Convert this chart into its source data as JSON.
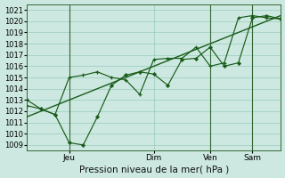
{
  "xlabel": "Pression niveau de la mer( hPa )",
  "ylim": [
    1008.5,
    1021.5
  ],
  "xlim": [
    0,
    108
  ],
  "yticks": [
    1009,
    1010,
    1011,
    1012,
    1013,
    1014,
    1015,
    1016,
    1017,
    1018,
    1019,
    1020,
    1021
  ],
  "xtick_positions": [
    18,
    54,
    78,
    96
  ],
  "xtick_labels": [
    "Jeu",
    "Dim",
    "Ven",
    "Sam"
  ],
  "vline_positions": [
    18,
    78,
    96
  ],
  "bg_color": "#cce8e0",
  "grid_color": "#99ccbb",
  "line_color": "#1a5c1a",
  "series1_x": [
    0,
    6,
    12,
    18,
    24,
    30,
    36,
    42,
    48,
    54,
    60,
    66,
    72,
    78,
    84,
    90,
    96,
    102,
    108
  ],
  "series1_y": [
    1013.0,
    1012.2,
    1011.7,
    1009.2,
    1009.0,
    1011.5,
    1014.3,
    1015.2,
    1015.5,
    1015.3,
    1014.3,
    1016.6,
    1016.7,
    1017.7,
    1016.0,
    1016.3,
    1020.3,
    1020.5,
    1020.2
  ],
  "series2_x": [
    0,
    6,
    12,
    18,
    24,
    30,
    36,
    42,
    48,
    54,
    60,
    66,
    72,
    78,
    84,
    90,
    96,
    102,
    108
  ],
  "series2_y": [
    1012.5,
    1012.2,
    1011.7,
    1015.0,
    1015.2,
    1015.5,
    1015.0,
    1014.8,
    1013.5,
    1016.6,
    1016.7,
    1016.7,
    1017.7,
    1016.0,
    1016.3,
    1020.3,
    1020.5,
    1020.3,
    1020.2
  ],
  "trend_x": [
    0,
    108
  ],
  "trend_y": [
    1011.5,
    1020.5
  ]
}
